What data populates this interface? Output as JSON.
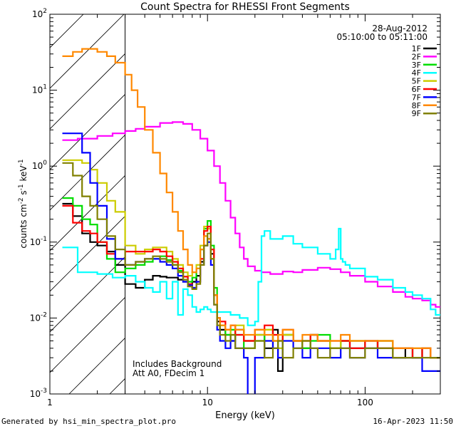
{
  "chart_data": {
    "type": "line",
    "title": "Count Spectra for RHESSI Front Segments",
    "xlabel": "Energy (keV)",
    "ylabel": "counts cm^-2 s^-1 keV^-1",
    "x_scale": "log",
    "y_scale": "log",
    "xlim": [
      1,
      300
    ],
    "ylim": [
      0.001,
      100
    ],
    "x_ticks": [
      {
        "value": 1,
        "label": "1"
      },
      {
        "value": 10,
        "label": "10"
      },
      {
        "value": 100,
        "label": "100"
      }
    ],
    "y_ticks": [
      {
        "value": 0.001,
        "label": "10^-3"
      },
      {
        "value": 0.01,
        "label": "10^-2"
      },
      {
        "value": 0.1,
        "label": "10^-1"
      },
      {
        "value": 1,
        "label": "10^0"
      },
      {
        "value": 10,
        "label": "10^1"
      },
      {
        "value": 100,
        "label": "10^2"
      }
    ],
    "grid": false,
    "legend_position": "top-right",
    "date": "28-Aug-2012",
    "time_range": "05:10:00 to 05:11:00",
    "hatched_region_max_energy": 3,
    "annotations": [
      "Includes Background",
      "Att A0, FDecim 1"
    ],
    "series": [
      {
        "name": "1F",
        "color": "#000000",
        "x": [
          1.2,
          1.4,
          1.6,
          1.8,
          2.0,
          2.3,
          2.6,
          3.0,
          3.5,
          4.0,
          4.5,
          5.0,
          5.5,
          6.0,
          6.5,
          7.0,
          7.5,
          8.0,
          8.5,
          9.0,
          9.5,
          10.0,
          10.5,
          11.0,
          11.5,
          12,
          13,
          14,
          15,
          17,
          20,
          23,
          26,
          28,
          30,
          35,
          40,
          45,
          50,
          60,
          70,
          80,
          100,
          120,
          150,
          180,
          200,
          230,
          260,
          280
        ],
        "y": [
          0.32,
          0.22,
          0.13,
          0.1,
          0.09,
          0.075,
          0.05,
          0.028,
          0.025,
          0.032,
          0.036,
          0.035,
          0.034,
          0.034,
          0.032,
          0.03,
          0.027,
          0.03,
          0.036,
          0.055,
          0.09,
          0.11,
          0.07,
          0.02,
          0.009,
          0.007,
          0.006,
          0.005,
          0.007,
          0.005,
          0.006,
          0.004,
          0.007,
          0.002,
          0.006,
          0.005,
          0.004,
          0.006,
          0.005,
          0.004,
          0.005,
          0.004,
          0.005,
          0.004,
          0.003,
          0.004,
          0.003,
          0.004,
          0.003,
          0.003
        ]
      },
      {
        "name": "2F",
        "color": "#ff00ff",
        "x": [
          1.2,
          1.5,
          2.0,
          2.5,
          3.0,
          3.5,
          4.0,
          5.0,
          6.0,
          7.0,
          8.0,
          9.0,
          10.0,
          11.0,
          12.0,
          13.0,
          14.0,
          15.0,
          16.0,
          17.0,
          18.0,
          20.0,
          22.0,
          25.0,
          30.0,
          35.0,
          40.0,
          50.0,
          60.0,
          70.0,
          80.0,
          100.0,
          120.0,
          150.0,
          180.0,
          200.0,
          230.0,
          260.0,
          280.0
        ],
        "y": [
          2.2,
          2.3,
          2.5,
          2.7,
          2.9,
          3.1,
          3.3,
          3.7,
          3.8,
          3.6,
          3.0,
          2.3,
          1.6,
          1.0,
          0.6,
          0.35,
          0.21,
          0.13,
          0.085,
          0.06,
          0.048,
          0.042,
          0.04,
          0.038,
          0.041,
          0.04,
          0.043,
          0.046,
          0.044,
          0.04,
          0.036,
          0.03,
          0.026,
          0.022,
          0.019,
          0.018,
          0.017,
          0.015,
          0.014
        ]
      },
      {
        "name": "3F",
        "color": "#00dd00",
        "x": [
          1.2,
          1.4,
          1.6,
          1.8,
          2.0,
          2.3,
          2.6,
          3.0,
          3.5,
          4.0,
          4.5,
          5.0,
          5.5,
          6.0,
          6.5,
          7.0,
          7.5,
          8.0,
          8.5,
          9.0,
          9.5,
          10.0,
          10.5,
          11.0,
          11.5,
          12,
          13,
          14,
          15,
          17,
          20,
          23,
          26,
          28,
          30,
          35,
          40,
          45,
          50,
          60,
          70,
          80,
          100,
          120,
          150,
          180,
          200,
          230,
          260,
          280
        ],
        "y": [
          0.38,
          0.3,
          0.2,
          0.17,
          0.1,
          0.06,
          0.04,
          0.045,
          0.05,
          0.055,
          0.06,
          0.065,
          0.058,
          0.05,
          0.042,
          0.035,
          0.03,
          0.034,
          0.045,
          0.08,
          0.15,
          0.19,
          0.09,
          0.025,
          0.01,
          0.008,
          0.006,
          0.007,
          0.006,
          0.004,
          0.005,
          0.007,
          0.005,
          0.004,
          0.006,
          0.005,
          0.004,
          0.005,
          0.006,
          0.004,
          0.005,
          0.005,
          0.004,
          0.005,
          0.004,
          0.004,
          0.003,
          0.004,
          0.003,
          0.003
        ]
      },
      {
        "name": "4F",
        "color": "#00ffff",
        "x": [
          1.2,
          1.5,
          2.0,
          2.5,
          3.0,
          3.5,
          4.0,
          4.5,
          5.0,
          5.5,
          6.0,
          6.5,
          7.0,
          7.5,
          8.0,
          8.5,
          9.0,
          9.5,
          10.0,
          10.5,
          11.0,
          12.0,
          14.0,
          16.0,
          18.0,
          20.0,
          21.0,
          22.0,
          23.0,
          25.0,
          30.0,
          35.0,
          40.0,
          50.0,
          60.0,
          65.0,
          68.0,
          70.0,
          72.0,
          75.0,
          80.0,
          100.0,
          120.0,
          150.0,
          180.0,
          200.0,
          230.0,
          260.0,
          280.0
        ],
        "y": [
          0.085,
          0.04,
          0.038,
          0.034,
          0.036,
          0.03,
          0.025,
          0.022,
          0.03,
          0.018,
          0.03,
          0.011,
          0.024,
          0.02,
          0.014,
          0.012,
          0.013,
          0.014,
          0.013,
          0.012,
          0.012,
          0.012,
          0.011,
          0.01,
          0.008,
          0.009,
          0.03,
          0.12,
          0.14,
          0.11,
          0.12,
          0.095,
          0.085,
          0.07,
          0.06,
          0.08,
          0.15,
          0.06,
          0.055,
          0.05,
          0.045,
          0.035,
          0.032,
          0.025,
          0.022,
          0.02,
          0.018,
          0.013,
          0.011
        ]
      },
      {
        "name": "5F",
        "color": "#cccc00",
        "x": [
          1.2,
          1.4,
          1.6,
          1.8,
          2.0,
          2.3,
          2.6,
          3.0,
          3.5,
          4.0,
          4.5,
          5.0,
          5.5,
          6.0,
          6.5,
          7.0,
          7.5,
          8.0,
          8.5,
          9.0,
          9.5,
          10.0,
          10.5,
          11.0,
          11.5,
          12,
          13,
          14,
          15,
          17,
          20,
          23,
          26,
          28,
          30,
          35,
          40,
          45,
          50,
          60,
          70,
          80,
          100,
          120,
          150,
          180,
          200,
          230,
          260,
          280
        ],
        "y": [
          1.2,
          1.2,
          1.1,
          0.9,
          0.6,
          0.35,
          0.25,
          0.09,
          0.07,
          0.08,
          0.085,
          0.085,
          0.075,
          0.06,
          0.05,
          0.04,
          0.036,
          0.04,
          0.05,
          0.09,
          0.16,
          0.15,
          0.08,
          0.02,
          0.01,
          0.008,
          0.007,
          0.006,
          0.008,
          0.005,
          0.006,
          0.007,
          0.005,
          0.004,
          0.006,
          0.005,
          0.005,
          0.006,
          0.005,
          0.004,
          0.005,
          0.005,
          0.004,
          0.005,
          0.004,
          0.004,
          0.004,
          0.004,
          0.003,
          0.003
        ]
      },
      {
        "name": "6F",
        "color": "#ff0000",
        "x": [
          1.2,
          1.4,
          1.6,
          1.8,
          2.0,
          2.3,
          2.6,
          3.0,
          3.5,
          4.0,
          4.5,
          5.0,
          5.5,
          6.0,
          6.5,
          7.0,
          7.5,
          8.0,
          8.5,
          9.0,
          9.5,
          10.0,
          10.5,
          11.0,
          11.5,
          12,
          13,
          14,
          15,
          17,
          20,
          23,
          26,
          28,
          30,
          35,
          40,
          45,
          50,
          60,
          70,
          80,
          100,
          120,
          150,
          180,
          200,
          230,
          260,
          280
        ],
        "y": [
          0.3,
          0.18,
          0.14,
          0.13,
          0.1,
          0.07,
          0.06,
          0.075,
          0.075,
          0.075,
          0.08,
          0.075,
          0.065,
          0.055,
          0.045,
          0.035,
          0.028,
          0.025,
          0.03,
          0.06,
          0.14,
          0.16,
          0.08,
          0.02,
          0.01,
          0.009,
          0.007,
          0.008,
          0.006,
          0.005,
          0.007,
          0.008,
          0.006,
          0.005,
          0.007,
          0.005,
          0.005,
          0.006,
          0.005,
          0.005,
          0.005,
          0.004,
          0.005,
          0.004,
          0.004,
          0.004,
          0.003,
          0.004,
          0.003,
          0.003
        ]
      },
      {
        "name": "7F",
        "color": "#0000ff",
        "x": [
          1.2,
          1.4,
          1.6,
          1.8,
          2.0,
          2.3,
          2.6,
          3.0,
          3.5,
          4.0,
          4.5,
          5.0,
          5.5,
          6.0,
          6.5,
          7.0,
          7.5,
          8.0,
          8.5,
          9.0,
          9.5,
          10.0,
          10.5,
          11.0,
          11.5,
          12,
          13,
          14,
          15,
          17,
          18,
          20,
          23,
          26,
          28,
          30,
          35,
          40,
          45,
          50,
          60,
          70,
          80,
          100,
          120,
          150,
          180,
          200,
          230,
          260,
          280
        ],
        "y": [
          2.7,
          2.7,
          1.5,
          0.6,
          0.3,
          0.11,
          0.06,
          0.05,
          0.055,
          0.06,
          0.06,
          0.055,
          0.05,
          0.045,
          0.036,
          0.03,
          0.027,
          0.025,
          0.03,
          0.05,
          0.09,
          0.1,
          0.05,
          0.015,
          0.007,
          0.005,
          0.004,
          0.005,
          0.004,
          0.003,
          0.0008,
          0.003,
          0.005,
          0.004,
          0.003,
          0.005,
          0.004,
          0.003,
          0.004,
          0.004,
          0.003,
          0.004,
          0.003,
          0.004,
          0.003,
          0.003,
          0.003,
          0.003,
          0.002,
          0.002,
          0.002
        ]
      },
      {
        "name": "8F",
        "color": "#ff8800",
        "x": [
          1.2,
          1.4,
          1.6,
          1.8,
          2.0,
          2.3,
          2.6,
          3.0,
          3.3,
          3.6,
          4.0,
          4.5,
          5.0,
          5.5,
          6.0,
          6.5,
          7.0,
          7.5,
          8.0,
          8.5,
          9.0,
          9.5,
          10.0,
          10.5,
          11.0,
          11.5,
          12,
          13,
          14,
          15,
          17,
          20,
          23,
          26,
          28,
          30,
          35,
          40,
          45,
          50,
          60,
          70,
          80,
          100,
          120,
          150,
          180,
          200,
          230,
          260,
          280
        ],
        "y": [
          28,
          32,
          35,
          35,
          32,
          28,
          23,
          16,
          10,
          6.0,
          3.0,
          1.5,
          0.8,
          0.45,
          0.25,
          0.14,
          0.08,
          0.05,
          0.04,
          0.045,
          0.08,
          0.12,
          0.11,
          0.06,
          0.02,
          0.01,
          0.008,
          0.007,
          0.008,
          0.007,
          0.006,
          0.007,
          0.006,
          0.005,
          0.006,
          0.007,
          0.005,
          0.006,
          0.006,
          0.005,
          0.005,
          0.006,
          0.005,
          0.005,
          0.005,
          0.004,
          0.004,
          0.004,
          0.004,
          0.003,
          0.003
        ]
      },
      {
        "name": "9F",
        "color": "#808000",
        "x": [
          1.2,
          1.4,
          1.6,
          1.8,
          2.0,
          2.3,
          2.6,
          3.0,
          3.5,
          4.0,
          4.5,
          5.0,
          5.5,
          6.0,
          6.5,
          7.0,
          7.5,
          8.0,
          8.5,
          9.0,
          9.5,
          10.0,
          10.5,
          11.0,
          11.5,
          12,
          13,
          14,
          15,
          17,
          20,
          23,
          26,
          28,
          30,
          35,
          40,
          45,
          50,
          60,
          70,
          80,
          100,
          120,
          150,
          180,
          200,
          230,
          260,
          280
        ],
        "y": [
          1.1,
          0.75,
          0.4,
          0.3,
          0.2,
          0.12,
          0.08,
          0.05,
          0.055,
          0.06,
          0.065,
          0.06,
          0.055,
          0.05,
          0.04,
          0.032,
          0.026,
          0.024,
          0.028,
          0.05,
          0.09,
          0.13,
          0.06,
          0.015,
          0.008,
          0.006,
          0.005,
          0.006,
          0.004,
          0.004,
          0.005,
          0.003,
          0.004,
          0.005,
          0.003,
          0.004,
          0.005,
          0.004,
          0.003,
          0.004,
          0.004,
          0.003,
          0.004,
          0.004,
          0.003,
          0.003,
          0.003,
          0.003,
          0.003,
          0.003
        ]
      }
    ]
  },
  "footer": {
    "generated_by": "Generated by hsi_min_spectra_plot.pro",
    "timestamp": "16-Apr-2023 11:50"
  }
}
